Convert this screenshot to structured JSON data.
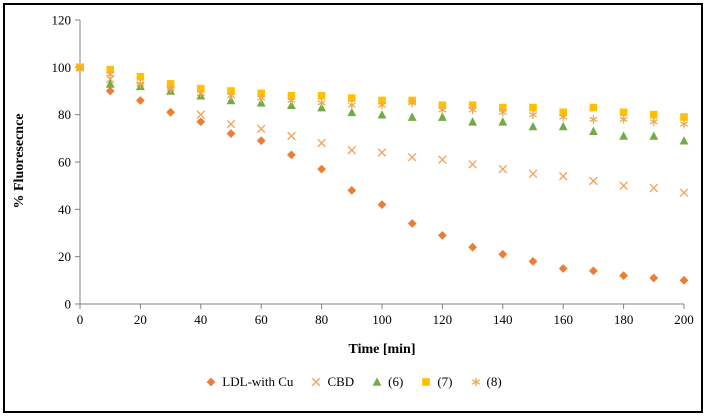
{
  "chart_data": {
    "type": "scatter",
    "title": "",
    "xlabel": "Time [min]",
    "ylabel": "% Fluoresecnce",
    "xlim": [
      0,
      200
    ],
    "ylim": [
      0,
      120
    ],
    "xtick_step": 20,
    "ytick_step": 20,
    "grid": false,
    "legend_position": "bottom",
    "axis_color": "#808080",
    "text_color": "#000000",
    "x": [
      0,
      10,
      20,
      30,
      40,
      50,
      60,
      70,
      80,
      90,
      100,
      110,
      120,
      130,
      140,
      150,
      160,
      170,
      180,
      190,
      200
    ],
    "series": [
      {
        "name": "LDL-with Cu",
        "marker": "diamond",
        "color": "#ED7D31",
        "values": [
          100,
          90,
          86,
          81,
          77,
          72,
          69,
          63,
          57,
          48,
          42,
          34,
          29,
          24,
          21,
          18,
          15,
          14,
          12,
          11,
          10
        ]
      },
      {
        "name": "CBD",
        "marker": "x",
        "color": "#F4A460",
        "values": [
          100,
          95,
          92,
          90,
          80,
          76,
          74,
          71,
          68,
          65,
          64,
          62,
          61,
          59,
          57,
          55,
          54,
          52,
          50,
          49,
          47
        ]
      },
      {
        "name": "(6)",
        "marker": "triangle",
        "color": "#70AD47",
        "values": [
          100,
          93,
          92,
          90,
          88,
          86,
          85,
          84,
          83,
          81,
          80,
          79,
          79,
          77,
          77,
          75,
          75,
          73,
          71,
          71,
          69
        ]
      },
      {
        "name": "(7)",
        "marker": "square",
        "color": "#FFC000",
        "values": [
          100,
          99,
          96,
          93,
          91,
          90,
          89,
          88,
          88,
          87,
          86,
          86,
          84,
          84,
          83,
          83,
          81,
          83,
          81,
          80,
          79
        ]
      },
      {
        "name": "(8)",
        "marker": "asterisk",
        "color": "#EDA94F",
        "values": [
          100,
          97,
          93,
          91,
          89,
          88,
          87,
          86,
          85,
          84,
          84,
          85,
          82,
          82,
          81,
          80,
          79,
          78,
          78,
          77,
          76
        ]
      }
    ]
  }
}
